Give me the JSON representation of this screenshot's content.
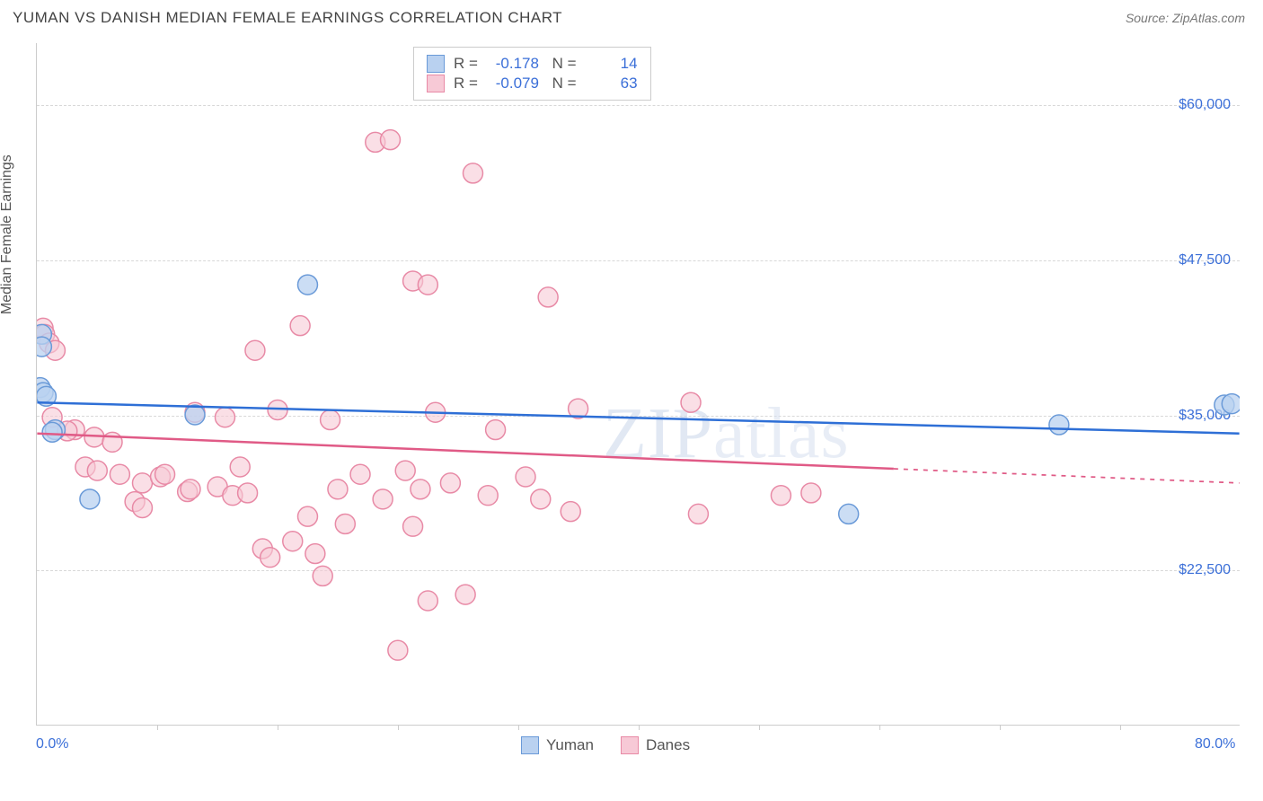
{
  "title": "YUMAN VS DANISH MEDIAN FEMALE EARNINGS CORRELATION CHART",
  "source": "Source: ZipAtlas.com",
  "watermark": {
    "part1": "ZIP",
    "part2": "atlas"
  },
  "yaxis_title": "Median Female Earnings",
  "chart": {
    "type": "scatter",
    "xlim": [
      0,
      80
    ],
    "ylim": [
      10000,
      65000
    ],
    "xlabel_min": "0.0%",
    "xlabel_max": "80.0%",
    "xtick_step": 8,
    "grid_color": "#d8d8d8",
    "background_color": "#ffffff",
    "yticks": [
      {
        "value": 60000,
        "label": "$60,000"
      },
      {
        "value": 47500,
        "label": "$47,500"
      },
      {
        "value": 35000,
        "label": "$35,000"
      },
      {
        "value": 22500,
        "label": "$22,500"
      }
    ],
    "series": [
      {
        "name": "Yuman",
        "color_fill": "#b9d1f0",
        "color_stroke": "#6a9ad8",
        "marker_radius": 11,
        "marker_opacity": 0.75,
        "R": "-0.178",
        "N": "14",
        "trend": {
          "x1": 0,
          "y1": 36000,
          "x2": 80,
          "y2": 33500,
          "solid_until": 80,
          "stroke": "#2e6fd6",
          "width": 2.5
        },
        "points": [
          [
            0.3,
            41500
          ],
          [
            0.3,
            40500
          ],
          [
            0.2,
            37200
          ],
          [
            0.4,
            36800
          ],
          [
            0.6,
            36500
          ],
          [
            1.2,
            33800
          ],
          [
            1.0,
            33600
          ],
          [
            10.5,
            35000
          ],
          [
            3.5,
            28200
          ],
          [
            18.0,
            45500
          ],
          [
            54.0,
            27000
          ],
          [
            68.0,
            34200
          ],
          [
            79.0,
            35800
          ],
          [
            79.5,
            35900
          ]
        ]
      },
      {
        "name": "Danes",
        "color_fill": "#f7c9d6",
        "color_stroke": "#e88aa6",
        "marker_radius": 11,
        "marker_opacity": 0.6,
        "R": "-0.079",
        "N": "63",
        "trend": {
          "x1": 0,
          "y1": 33500,
          "x2": 80,
          "y2": 29500,
          "solid_until": 57,
          "stroke": "#e05a86",
          "width": 2.5
        },
        "points": [
          [
            0.4,
            42000
          ],
          [
            0.5,
            41500
          ],
          [
            0.8,
            40800
          ],
          [
            1.2,
            40200
          ],
          [
            1.0,
            34800
          ],
          [
            2.5,
            33800
          ],
          [
            2.0,
            33700
          ],
          [
            3.8,
            33200
          ],
          [
            3.2,
            30800
          ],
          [
            4.0,
            30500
          ],
          [
            5.0,
            32800
          ],
          [
            5.5,
            30200
          ],
          [
            6.5,
            28000
          ],
          [
            7.0,
            29500
          ],
          [
            7.0,
            27500
          ],
          [
            8.2,
            30000
          ],
          [
            8.5,
            30200
          ],
          [
            10.5,
            35200
          ],
          [
            10.0,
            28800
          ],
          [
            10.2,
            29000
          ],
          [
            12.5,
            34800
          ],
          [
            12.0,
            29200
          ],
          [
            13.0,
            28500
          ],
          [
            13.5,
            30800
          ],
          [
            14.5,
            40200
          ],
          [
            14.0,
            28700
          ],
          [
            15.0,
            24200
          ],
          [
            15.5,
            23500
          ],
          [
            16.0,
            35400
          ],
          [
            17.5,
            42200
          ],
          [
            17.0,
            24800
          ],
          [
            18.5,
            23800
          ],
          [
            18.0,
            26800
          ],
          [
            19.0,
            22000
          ],
          [
            19.5,
            34600
          ],
          [
            20.0,
            29000
          ],
          [
            20.5,
            26200
          ],
          [
            22.5,
            57000
          ],
          [
            23.5,
            57200
          ],
          [
            21.5,
            30200
          ],
          [
            23.0,
            28200
          ],
          [
            24.5,
            30500
          ],
          [
            25.0,
            45800
          ],
          [
            26.0,
            45500
          ],
          [
            26.5,
            35200
          ],
          [
            25.5,
            29000
          ],
          [
            25.0,
            26000
          ],
          [
            26.0,
            20000
          ],
          [
            27.5,
            29500
          ],
          [
            29.0,
            54500
          ],
          [
            28.5,
            20500
          ],
          [
            24.0,
            16000
          ],
          [
            30.0,
            28500
          ],
          [
            30.5,
            33800
          ],
          [
            32.5,
            30000
          ],
          [
            33.5,
            28200
          ],
          [
            34.0,
            44500
          ],
          [
            35.5,
            27200
          ],
          [
            36.0,
            35500
          ],
          [
            44.0,
            27000
          ],
          [
            49.5,
            28500
          ],
          [
            51.5,
            28700
          ],
          [
            43.5,
            36000
          ]
        ]
      }
    ]
  }
}
